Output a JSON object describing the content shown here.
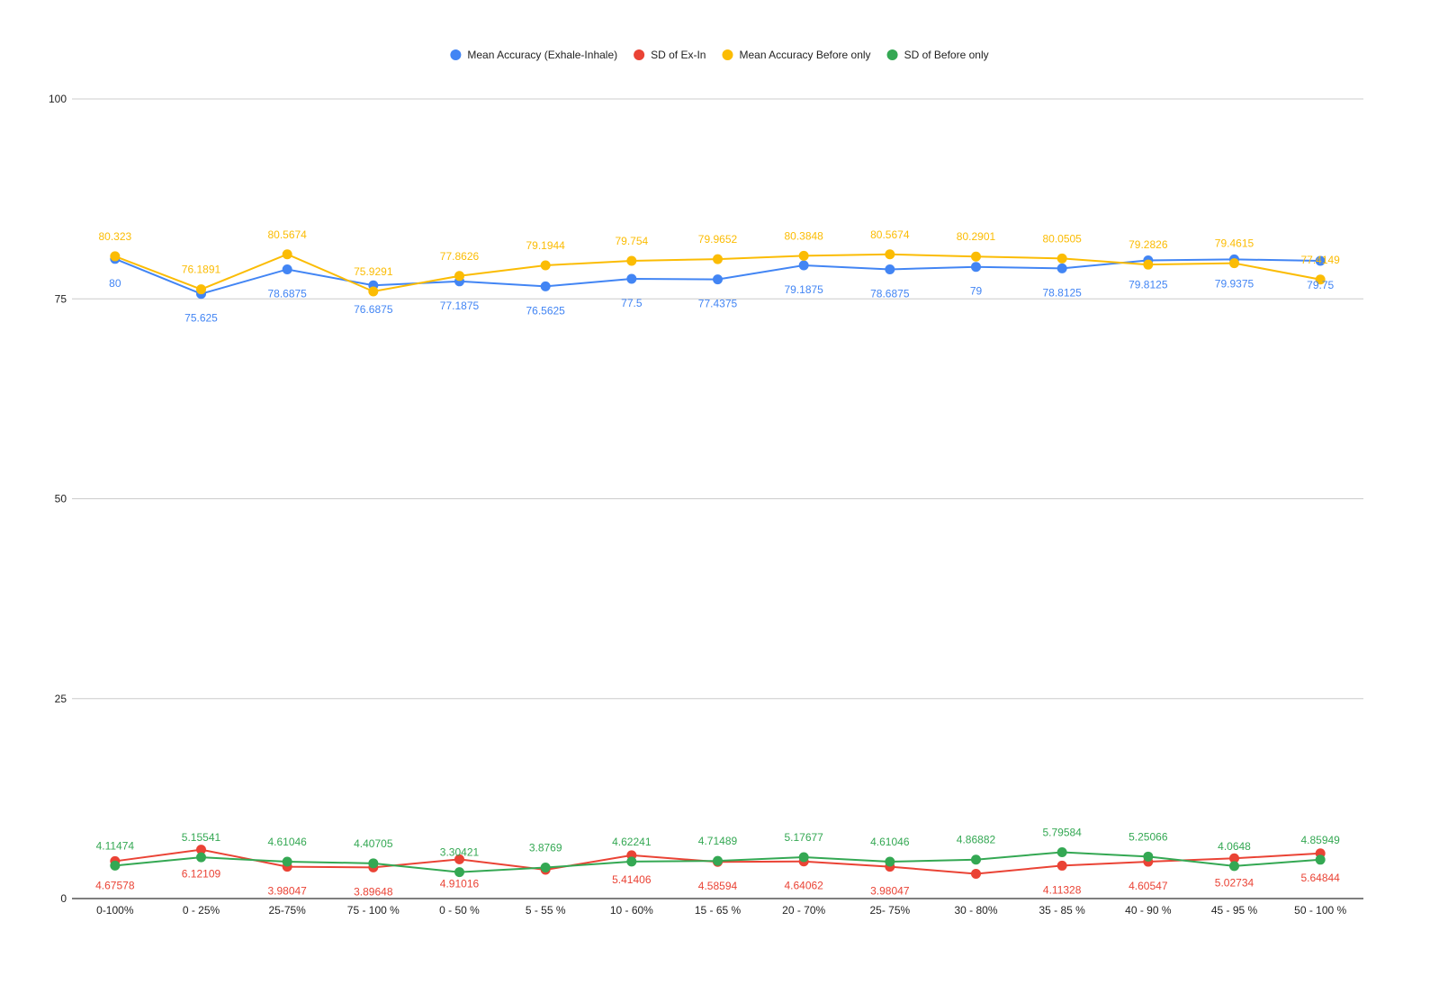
{
  "chart_data": {
    "type": "line",
    "categories": [
      "0-100%",
      "0 - 25%",
      "25-75%",
      "75 - 100 %",
      "0 - 50 %",
      "5 - 55 %",
      "10 - 60%",
      "15 - 65 %",
      "20 - 70%",
      "25- 75%",
      "30 - 80%",
      "35 - 85 %",
      "40 - 90 %",
      "45 - 95 %",
      "50 - 100 %"
    ],
    "ylim": [
      0,
      100
    ],
    "yticks": [
      0,
      25,
      50,
      75,
      100
    ],
    "ytick_labels": [
      "0",
      "25",
      "50",
      "75",
      "100"
    ],
    "grid": true,
    "legend_position": "top",
    "series": [
      {
        "name": "Mean Accuracy (Exhale-Inhale)",
        "color": "#4285F4",
        "label_position": "below",
        "values": [
          80,
          75.625,
          78.6875,
          76.6875,
          77.1875,
          76.5625,
          77.5,
          77.4375,
          79.1875,
          78.6875,
          79,
          78.8125,
          79.8125,
          79.9375,
          79.75
        ],
        "labels": [
          "80",
          "75.625",
          "78.6875",
          "76.6875",
          "77.1875",
          "76.5625",
          "77.5",
          "77.4375",
          "79.1875",
          "78.6875",
          "79",
          "78.8125",
          "79.8125",
          "79.9375",
          "79.75"
        ]
      },
      {
        "name": "SD of Ex-In",
        "color": "#EA4335",
        "label_position": "below",
        "values": [
          4.67578,
          6.12109,
          3.98047,
          3.89648,
          4.91016,
          3.6,
          5.41406,
          4.58594,
          4.64062,
          3.98047,
          3.1,
          4.11328,
          4.60547,
          5.02734,
          5.64844
        ],
        "labels": [
          "4.67578",
          "6.12109",
          "3.98047",
          "3.89648",
          "4.91016",
          "",
          "5.41406",
          "4.58594",
          "4.64062",
          "3.98047",
          "",
          "4.11328",
          "4.60547",
          "5.02734",
          "5.64844"
        ]
      },
      {
        "name": "Mean Accuracy Before only",
        "color": "#FBBC04",
        "label_position": "above",
        "values": [
          80.323,
          76.1891,
          80.5674,
          75.9291,
          77.8626,
          79.1944,
          79.754,
          79.9652,
          80.3848,
          80.5674,
          80.2901,
          80.0505,
          79.2826,
          79.4615,
          77.4149
        ],
        "labels": [
          "80.323",
          "76.1891",
          "80.5674",
          "75.9291",
          "77.8626",
          "79.1944",
          "79.754",
          "79.9652",
          "80.3848",
          "80.5674",
          "80.2901",
          "80.0505",
          "79.2826",
          "79.4615",
          "77.4149"
        ]
      },
      {
        "name": "SD of Before only",
        "color": "#34A853",
        "label_position": "above",
        "values": [
          4.11474,
          5.15541,
          4.61046,
          4.40705,
          3.30421,
          3.8769,
          4.62241,
          4.71489,
          5.17677,
          4.61046,
          4.86882,
          5.79584,
          5.25066,
          4.0648,
          4.85949
        ],
        "labels": [
          "4.11474",
          "5.15541",
          "4.61046",
          "4.40705",
          "3.30421",
          "3.8769",
          "4.62241",
          "4.71489",
          "5.17677",
          "4.61046",
          "4.86882",
          "5.79584",
          "5.25066",
          "4.0648",
          "4.85949"
        ]
      }
    ]
  }
}
